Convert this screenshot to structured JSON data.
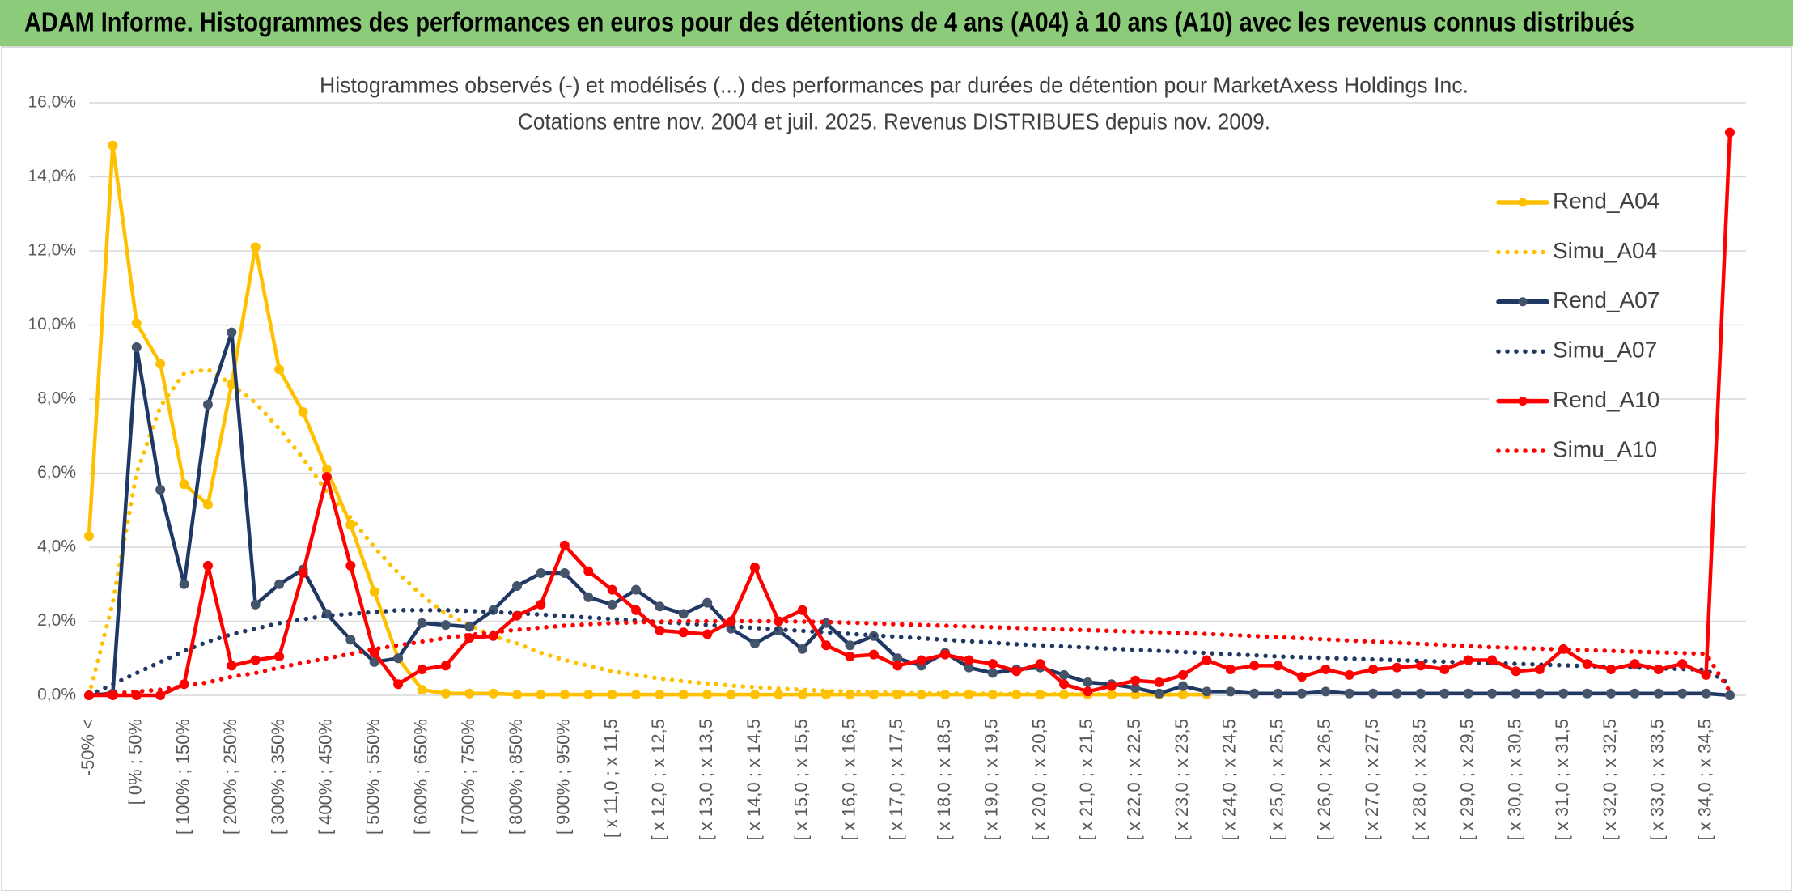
{
  "header": {
    "title": "ADAM Informe. Histogrammes des performances en euros pour des détentions de 4 ans (A04) à 10 ans (A10) avec les revenus connus distribués"
  },
  "chart_data": {
    "type": "line",
    "title": "Histogrammes observés (-) et modélisés (...) des performances par durées de détention pour MarketAxess Holdings Inc.",
    "subtitle": "Cotations entre nov. 2004 et juil. 2025. Revenus DISTRIBUES depuis nov. 2009.",
    "categories": [
      "-50% <",
      null,
      "[ 0% ; 50%",
      null,
      "[ 100% ; 150%",
      null,
      "[ 200% ; 250%",
      null,
      "[ 300% ; 350%",
      null,
      "[ 400% ; 450%",
      null,
      "[ 500% ; 550%",
      null,
      "[ 600% ; 650%",
      null,
      "[ 700% ; 750%",
      null,
      "[ 800% ; 850%",
      null,
      "[ 900% ; 950%",
      null,
      "[ x 11,0 ; x 11,5",
      null,
      "[ x 12,0 ; x 12,5",
      null,
      "[ x 13,0 ; x 13,5",
      null,
      "[ x 14,0 ; x 14,5",
      null,
      "[ x 15,0 ; x 15,5",
      null,
      "[ x 16,0 ; x 16,5",
      null,
      "[ x 17,0 ; x 17,5",
      null,
      "[ x 18,0 ; x 18,5",
      null,
      "[ x 19,0 ; x 19,5",
      null,
      "[ x 20,0 ; x 20,5",
      null,
      "[ x 21,0 ; x 21,5",
      null,
      "[ x 22,0 ; x 22,5",
      null,
      "[ x 23,0 ; x 23,5",
      null,
      "[ x 24,0 ; x 24,5",
      null,
      "[ x 25,0 ; x 25,5",
      null,
      "[ x 26,0 ; x 26,5",
      null,
      "[ x 27,0 ; x 27,5",
      null,
      "[ x 28,0 ; x 28,5",
      null,
      "[ x 29,0 ; x 29,5",
      null,
      "[ x 30,0 ; x 30,5",
      null,
      "[ x 31,0 ; x 31,5",
      null,
      "[ x 32,0 ; x 32,5",
      null,
      "[ x 33,0 ; x 33,5",
      null,
      "[ x 34,0 ; x 34,5",
      null
    ],
    "series": [
      {
        "name": "Rend_A04",
        "color": "#FFC000",
        "line_style": "solid",
        "markers": true,
        "marker_color": "#FFC000",
        "values": [
          4.3,
          14.85,
          10.05,
          8.95,
          5.7,
          5.15,
          8.4,
          12.1,
          8.8,
          7.65,
          6.1,
          4.6,
          2.8,
          1.0,
          0.15,
          0.05,
          0.05,
          0.05,
          0.02,
          0.02,
          0.02,
          0.02,
          0.02,
          0.02,
          0.02,
          0.02,
          0.02,
          0.02,
          0.02,
          0.02,
          0.02,
          0.02,
          0.02,
          0.02,
          0.02,
          0.02,
          0.02,
          0.02,
          0.02,
          0.02,
          0.02,
          0.02,
          0.02,
          0.02,
          0.02,
          0.02,
          0.02,
          0.02,
          null,
          null,
          null,
          null,
          null,
          null,
          null,
          null,
          null,
          null,
          null,
          null,
          null,
          null,
          null,
          null,
          null,
          null,
          null,
          null,
          null,
          null
        ]
      },
      {
        "name": "Simu_A04",
        "color": "#FFC000",
        "line_style": "dotted",
        "markers": false,
        "values": [
          0,
          2.5,
          6.0,
          7.8,
          8.7,
          8.8,
          8.4,
          7.9,
          7.2,
          6.4,
          5.5,
          4.8,
          4.0,
          3.3,
          2.7,
          2.2,
          1.9,
          1.6,
          1.4,
          1.15,
          0.95,
          0.8,
          0.65,
          0.55,
          0.45,
          0.38,
          0.32,
          0.26,
          0.22,
          0.18,
          0.15,
          0.12,
          0.1,
          0.08,
          0.07,
          0.06,
          0.05,
          0.05,
          0.04,
          0.04,
          0.03,
          0.03,
          0.03,
          0.02,
          0.02,
          0.02,
          0.02,
          0.02,
          null,
          null,
          null,
          null,
          null,
          null,
          null,
          null,
          null,
          null,
          null,
          null,
          null,
          null,
          null,
          null,
          null,
          null,
          null,
          null,
          null,
          null
        ]
      },
      {
        "name": "Rend_A07",
        "color": "#1F3864",
        "line_style": "solid",
        "markers": true,
        "marker_color": "#44546A",
        "values": [
          0,
          0.05,
          9.4,
          5.55,
          3.0,
          7.85,
          9.8,
          2.45,
          3.0,
          3.4,
          2.2,
          1.5,
          0.9,
          1.0,
          1.95,
          1.9,
          1.85,
          2.3,
          2.95,
          3.3,
          3.3,
          2.65,
          2.45,
          2.85,
          2.4,
          2.2,
          2.5,
          1.8,
          1.4,
          1.75,
          1.25,
          1.95,
          1.35,
          1.6,
          1.0,
          0.8,
          1.15,
          0.75,
          0.6,
          0.7,
          0.75,
          0.55,
          0.35,
          0.3,
          0.2,
          0.05,
          0.25,
          0.1,
          0.1,
          0.05,
          0.05,
          0.05,
          0.1,
          0.05,
          0.05,
          0.05,
          0.05,
          0.05,
          0.05,
          0.05,
          0.05,
          0.05,
          0.05,
          0.05,
          0.05,
          0.05,
          0.05,
          0.05,
          0.05,
          0
        ]
      },
      {
        "name": "Simu_A07",
        "color": "#1F3864",
        "line_style": "dotted",
        "markers": false,
        "values": [
          0,
          0.3,
          0.6,
          0.9,
          1.2,
          1.45,
          1.65,
          1.8,
          1.95,
          2.05,
          2.15,
          2.2,
          2.25,
          2.3,
          2.3,
          2.3,
          2.28,
          2.25,
          2.22,
          2.18,
          2.14,
          2.1,
          2.06,
          2.02,
          1.98,
          1.94,
          1.9,
          1.86,
          1.82,
          1.78,
          1.74,
          1.7,
          1.66,
          1.62,
          1.58,
          1.54,
          1.5,
          1.46,
          1.42,
          1.38,
          1.35,
          1.32,
          1.29,
          1.26,
          1.23,
          1.2,
          1.17,
          1.14,
          1.11,
          1.08,
          1.05,
          1.03,
          1.01,
          0.99,
          0.97,
          0.95,
          0.93,
          0.91,
          0.89,
          0.87,
          0.85,
          0.83,
          0.81,
          0.79,
          0.77,
          0.75,
          0.73,
          0.71,
          0.69,
          0.3
        ]
      },
      {
        "name": "Rend_A10",
        "color": "#FF0000",
        "line_style": "solid",
        "markers": true,
        "marker_color": "#FF0000",
        "values": [
          0,
          0,
          0,
          0,
          0.3,
          3.5,
          0.8,
          0.95,
          1.05,
          3.3,
          5.9,
          3.5,
          1.15,
          0.3,
          0.7,
          0.8,
          1.55,
          1.6,
          2.15,
          2.45,
          4.05,
          3.35,
          2.85,
          2.3,
          1.75,
          1.7,
          1.65,
          2.0,
          3.45,
          2.0,
          2.3,
          1.35,
          1.05,
          1.1,
          0.8,
          0.95,
          1.1,
          0.95,
          0.85,
          0.65,
          0.85,
          0.3,
          0.1,
          0.25,
          0.4,
          0.35,
          0.55,
          0.95,
          0.7,
          0.8,
          0.8,
          0.5,
          0.7,
          0.55,
          0.7,
          0.75,
          0.8,
          0.7,
          0.95,
          0.95,
          0.65,
          0.7,
          1.25,
          0.85,
          0.7,
          0.85,
          0.7,
          0.85,
          0.55,
          15.2
        ]
      },
      {
        "name": "Simu_A10",
        "color": "#FF0000",
        "line_style": "dotted",
        "markers": false,
        "values": [
          0,
          0.05,
          0.1,
          0.15,
          0.25,
          0.35,
          0.5,
          0.6,
          0.75,
          0.88,
          1.0,
          1.12,
          1.25,
          1.35,
          1.45,
          1.55,
          1.63,
          1.7,
          1.77,
          1.83,
          1.88,
          1.92,
          1.95,
          1.97,
          1.99,
          2.0,
          2.0,
          2.0,
          2.0,
          2.0,
          1.99,
          1.98,
          1.96,
          1.94,
          1.92,
          1.9,
          1.88,
          1.86,
          1.84,
          1.82,
          1.8,
          1.78,
          1.76,
          1.74,
          1.72,
          1.7,
          1.68,
          1.66,
          1.63,
          1.6,
          1.57,
          1.54,
          1.51,
          1.48,
          1.45,
          1.42,
          1.39,
          1.36,
          1.33,
          1.3,
          1.28,
          1.26,
          1.24,
          1.22,
          1.2,
          1.18,
          1.16,
          1.14,
          1.12,
          0.1
        ]
      }
    ],
    "ylim": [
      0,
      16
    ],
    "yticks": [
      {
        "value": 0,
        "label": "0,0%"
      },
      {
        "value": 2,
        "label": "2,0%"
      },
      {
        "value": 4,
        "label": "4,0%"
      },
      {
        "value": 6,
        "label": "6,0%"
      },
      {
        "value": 8,
        "label": "8,0%"
      },
      {
        "value": 10,
        "label": "10,0%"
      },
      {
        "value": 12,
        "label": "12,0%"
      },
      {
        "value": 14,
        "label": "14,0%"
      },
      {
        "value": 16,
        "label": "16,0%"
      }
    ],
    "grid": true,
    "legend": "right"
  }
}
